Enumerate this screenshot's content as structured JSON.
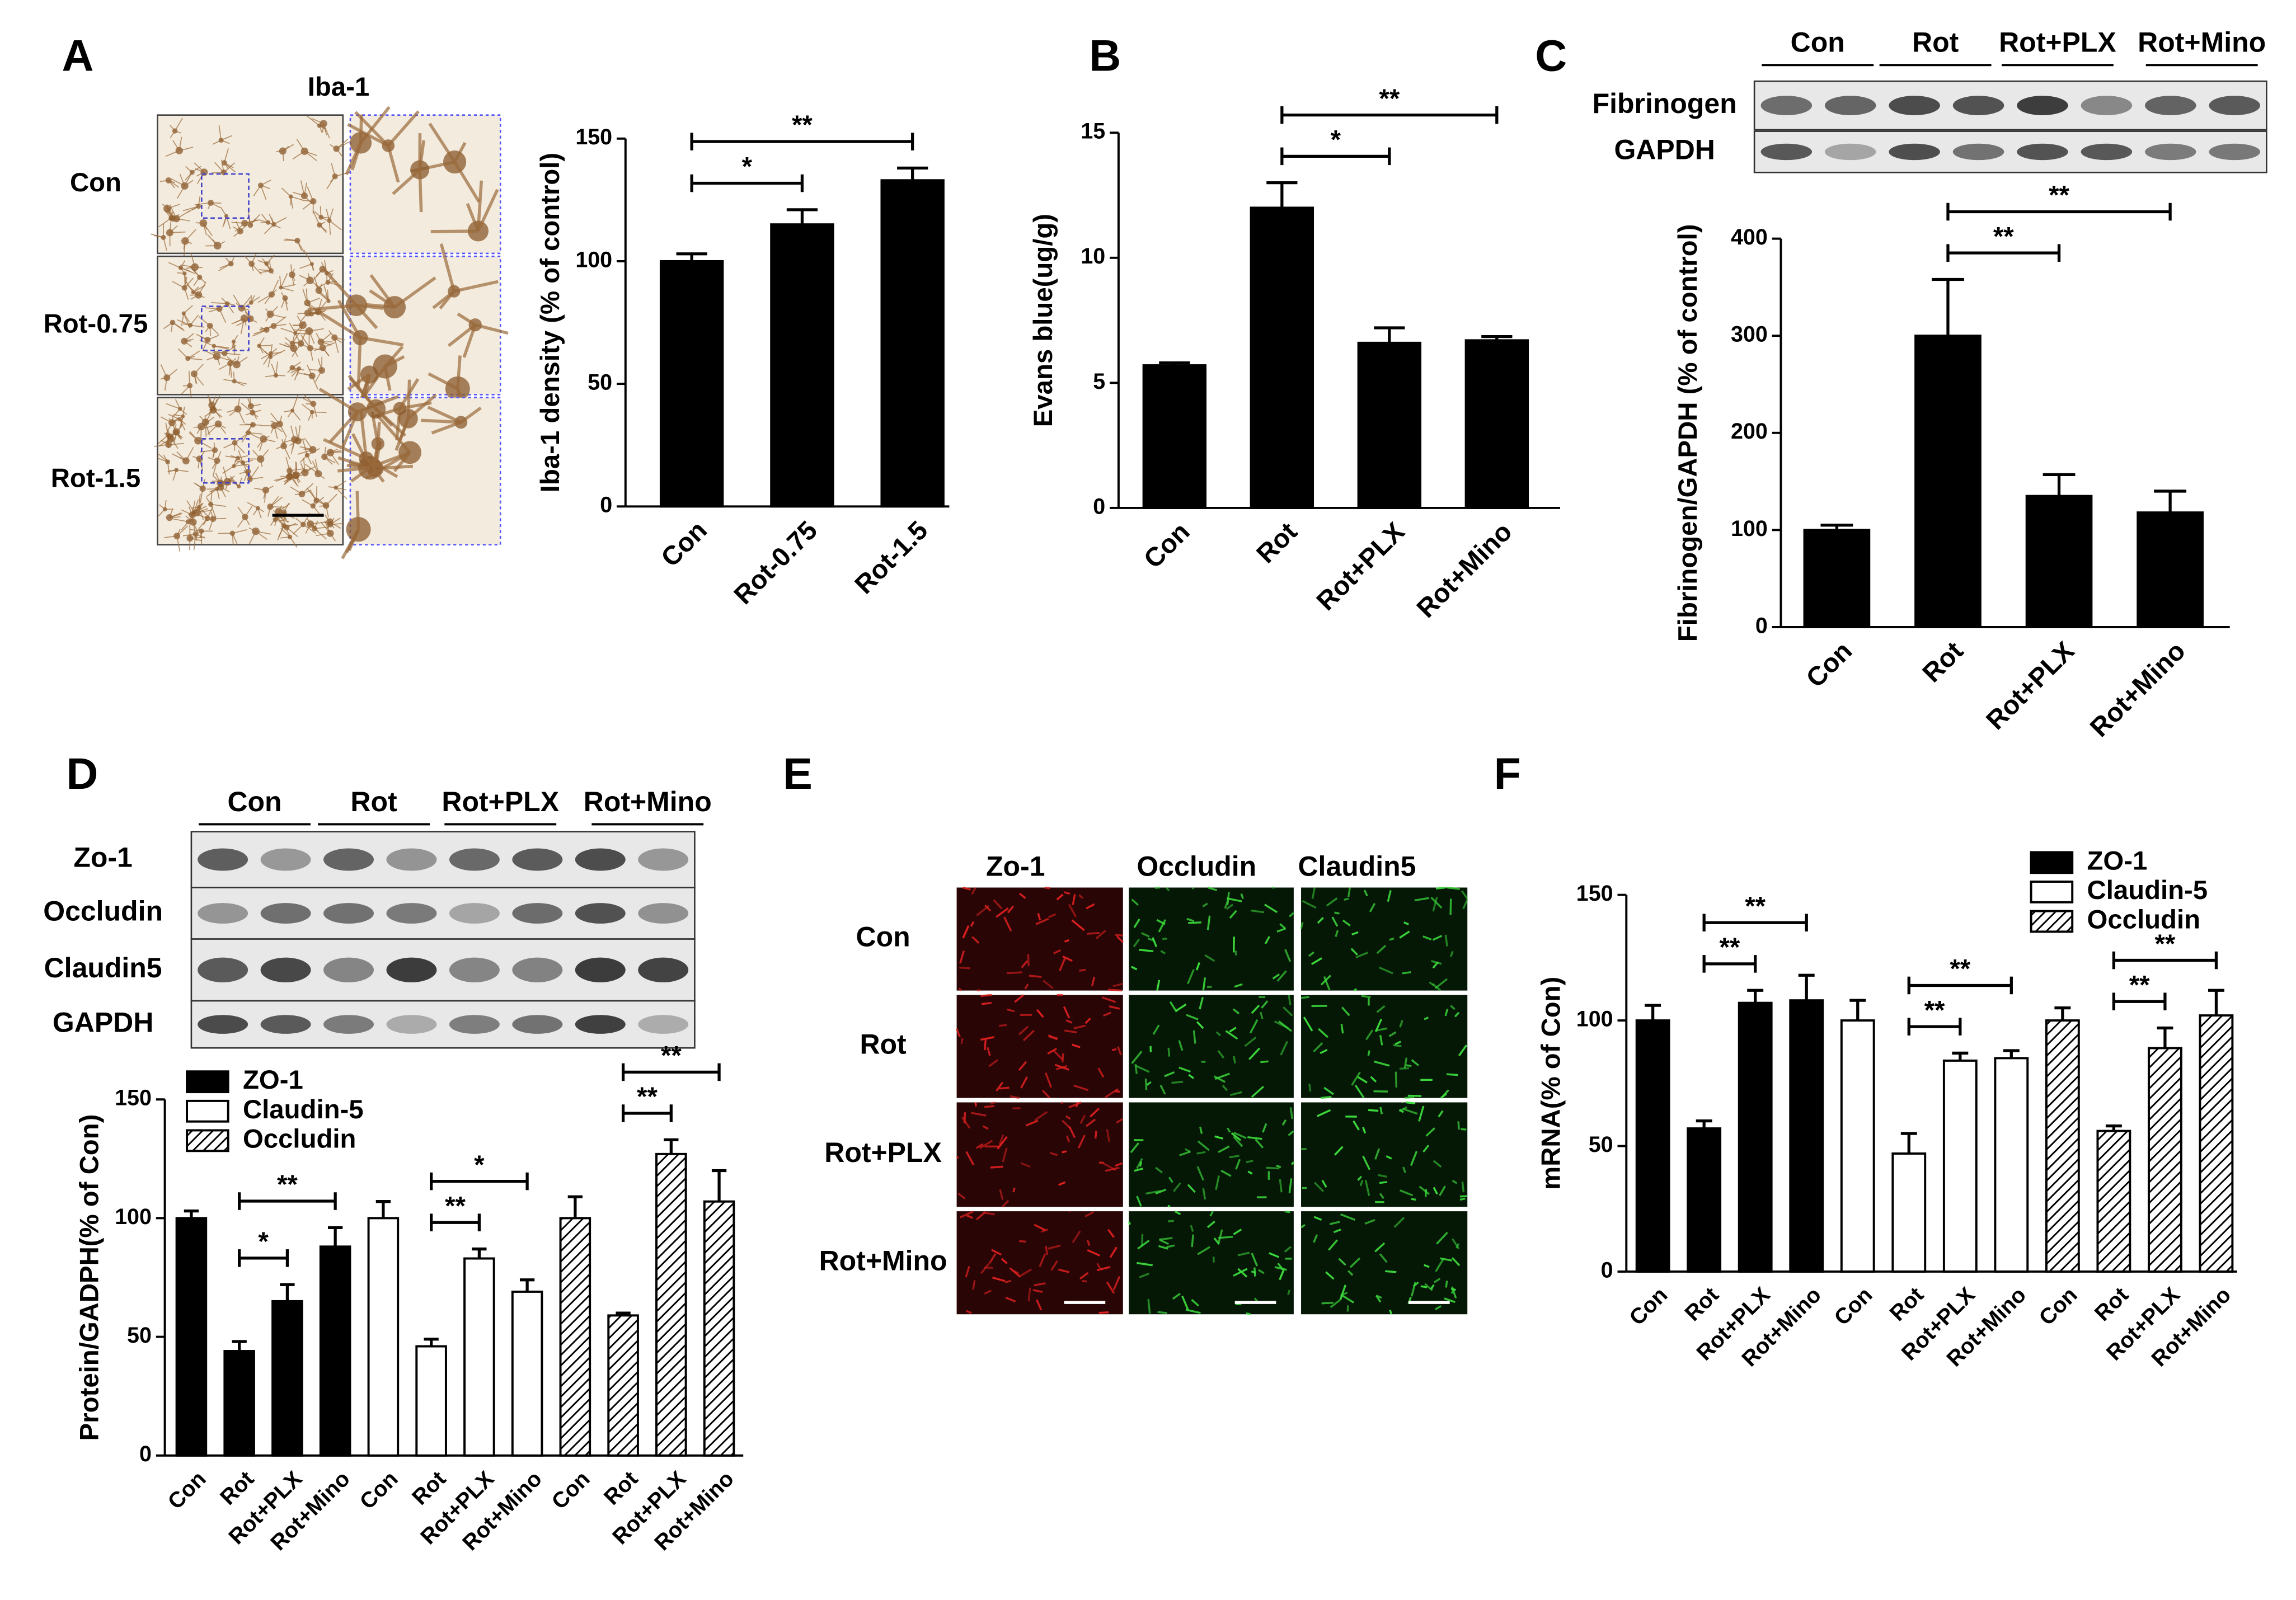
{
  "panel_labels": [
    "A",
    "B",
    "C",
    "D",
    "E",
    "F"
  ],
  "panel_a_image": {
    "title": "Iba-1",
    "rows": [
      "Con",
      "Rot-0.75",
      "Rot-1.5"
    ]
  },
  "panel_c_blot": {
    "columns": [
      "Con",
      "Rot",
      "Rot+PLX",
      "Rot+Mino"
    ],
    "rows": [
      "Fibrinogen",
      "GAPDH"
    ]
  },
  "panel_d_blot": {
    "columns": [
      "Con",
      "Rot",
      "Rot+PLX",
      "Rot+Mino"
    ],
    "rows": [
      "Zo-1",
      "Occludin",
      "Claudin5",
      "GAPDH"
    ]
  },
  "panel_e_image": {
    "columns": [
      "Zo-1",
      "Occludin",
      "Claudin5"
    ],
    "rows": [
      "Con",
      "Rot",
      "Rot+PLX",
      "Rot+Mino"
    ]
  },
  "chart_data": [
    {
      "type": "bar",
      "ylabel": "Iba-1 density (% of control)",
      "categories": [
        "Con",
        "Rot-0.75",
        "Rot-1.5"
      ],
      "values": [
        100,
        115,
        133
      ],
      "errors": [
        3,
        6,
        5
      ],
      "color": "#000000",
      "ylim": [
        0,
        150
      ],
      "yticks": [
        0,
        50,
        100,
        150
      ],
      "annotations": [
        {
          "from": 0,
          "to": 1,
          "label": "*"
        },
        {
          "from": 0,
          "to": 2,
          "label": "**"
        }
      ]
    },
    {
      "type": "bar",
      "ylabel": "Evans blue(ug/g)",
      "categories": [
        "Con",
        "Rot",
        "Rot+PLX",
        "Rot+Mino"
      ],
      "values": [
        5.7,
        12.0,
        6.6,
        6.7
      ],
      "errors": [
        0.1,
        1.0,
        0.6,
        0.15
      ],
      "color": "#000000",
      "ylim": [
        0,
        15
      ],
      "yticks": [
        0,
        5,
        10,
        15
      ],
      "annotations": [
        {
          "from": 1,
          "to": 2,
          "label": "*"
        },
        {
          "from": 1,
          "to": 3,
          "label": "**"
        }
      ]
    },
    {
      "type": "bar",
      "ylabel": "Fibrinogen/GAPDH (% of control)",
      "categories": [
        "Con",
        "Rot",
        "Rot+PLX",
        "Rot+Mino"
      ],
      "values": [
        100,
        300,
        135,
        118
      ],
      "errors": [
        5,
        58,
        22,
        22
      ],
      "color": "#000000",
      "ylim": [
        0,
        400
      ],
      "yticks": [
        0,
        100,
        200,
        300,
        400
      ],
      "annotations": [
        {
          "from": 1,
          "to": 2,
          "label": "**"
        },
        {
          "from": 1,
          "to": 3,
          "label": "**"
        }
      ]
    },
    {
      "type": "grouped_bar",
      "ylabel": "Protein/GADPH(% of Con)",
      "categories": [
        "Con",
        "Rot",
        "Rot+PLX",
        "Rot+Mino",
        "Con",
        "Rot",
        "Rot+PLX",
        "Rot+Mino",
        "Con",
        "Rot",
        "Rot+PLX",
        "Rot+Mino"
      ],
      "series": [
        {
          "name": "ZO-1",
          "color": "#000000",
          "hatch": false,
          "values": [
            100,
            44,
            65,
            88,
            null,
            null,
            null,
            null,
            null,
            null,
            null,
            null
          ],
          "errors": [
            3,
            4,
            7,
            8,
            null,
            null,
            null,
            null,
            null,
            null,
            null,
            null
          ]
        },
        {
          "name": "Claudin-5",
          "color": "#ffffff",
          "hatch": false,
          "values": [
            null,
            null,
            null,
            null,
            100,
            46,
            83,
            69,
            null,
            null,
            null,
            null
          ],
          "errors": [
            null,
            null,
            null,
            null,
            7,
            3,
            4,
            5,
            null,
            null,
            null,
            null
          ]
        },
        {
          "name": "Occludin",
          "color": "#ffffff",
          "hatch": true,
          "values": [
            null,
            null,
            null,
            null,
            null,
            null,
            null,
            null,
            100,
            59,
            127,
            107
          ],
          "errors": [
            null,
            null,
            null,
            null,
            null,
            null,
            null,
            null,
            9,
            1,
            6,
            13
          ]
        }
      ],
      "ylim": [
        0,
        150
      ],
      "yticks": [
        0,
        50,
        100,
        150
      ],
      "legend": "top-left",
      "annotations": [
        {
          "from": 1,
          "to": 2,
          "label": "*"
        },
        {
          "from": 1,
          "to": 3,
          "label": "**"
        },
        {
          "from": 5,
          "to": 6,
          "label": "**"
        },
        {
          "from": 5,
          "to": 7,
          "label": "*"
        },
        {
          "from": 9,
          "to": 10,
          "label": "**"
        },
        {
          "from": 9,
          "to": 11,
          "label": "**"
        }
      ]
    },
    {
      "type": "grouped_bar",
      "ylabel": "mRNA(% of Con)",
      "categories": [
        "Con",
        "Rot",
        "Rot+PLX",
        "Rot+Mino",
        "Con",
        "Rot",
        "Rot+PLX",
        "Rot+Mino",
        "Con",
        "Rot",
        "Rot+PLX",
        "Rot+Mino"
      ],
      "series": [
        {
          "name": "ZO-1",
          "color": "#000000",
          "hatch": false,
          "values": [
            100,
            57,
            107,
            108,
            null,
            null,
            null,
            null,
            null,
            null,
            null,
            null
          ],
          "errors": [
            6,
            3,
            5,
            10,
            null,
            null,
            null,
            null,
            null,
            null,
            null,
            null
          ]
        },
        {
          "name": "Claudin-5",
          "color": "#ffffff",
          "hatch": false,
          "values": [
            null,
            null,
            null,
            null,
            100,
            47,
            84,
            85,
            null,
            null,
            null,
            null
          ],
          "errors": [
            null,
            null,
            null,
            null,
            8,
            8,
            3,
            3,
            null,
            null,
            null,
            null
          ]
        },
        {
          "name": "Occludin",
          "color": "#ffffff",
          "hatch": true,
          "values": [
            null,
            null,
            null,
            null,
            null,
            null,
            null,
            null,
            100,
            56,
            89,
            102
          ],
          "errors": [
            null,
            null,
            null,
            null,
            null,
            null,
            null,
            null,
            5,
            2,
            8,
            10
          ]
        }
      ],
      "ylim": [
        0,
        150
      ],
      "yticks": [
        0,
        50,
        100,
        150
      ],
      "legend": "top-right",
      "annotations": [
        {
          "from": 1,
          "to": 2,
          "label": "**"
        },
        {
          "from": 1,
          "to": 3,
          "label": "**"
        },
        {
          "from": 5,
          "to": 6,
          "label": "**"
        },
        {
          "from": 5,
          "to": 7,
          "label": "**"
        },
        {
          "from": 9,
          "to": 10,
          "label": "**"
        },
        {
          "from": 9,
          "to": 11,
          "label": "**"
        }
      ]
    }
  ]
}
